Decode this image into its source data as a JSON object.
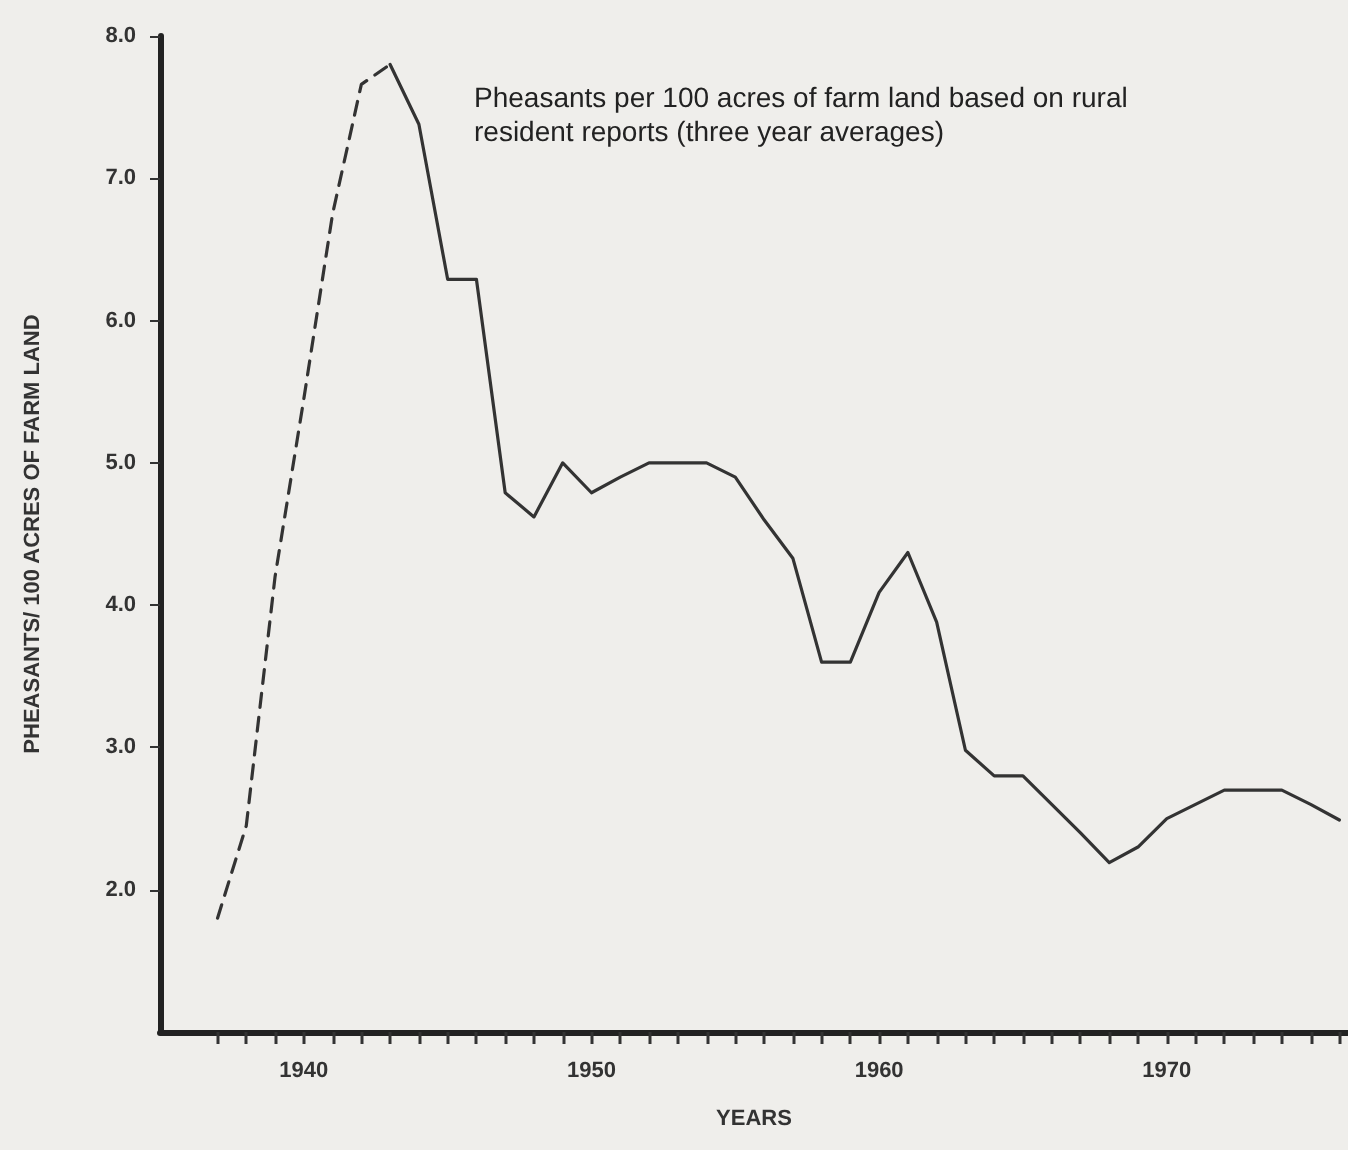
{
  "chart_data": {
    "type": "line",
    "xlabel": "YEARS",
    "ylabel": "PHEASANTS/ 100 ACRES OF FARM LAND",
    "annotations": [
      "Pheasants per 100 acres of farm land based on rural resident reports (three year averages)"
    ],
    "xlim": [
      1935,
      1976.3
    ],
    "xticks": [
      {
        "value": 1937,
        "label": null
      },
      {
        "value": 1938,
        "label": null
      },
      {
        "value": 1939,
        "label": null
      },
      1940,
      {
        "value": 1941,
        "label": null
      },
      {
        "value": 1942,
        "label": null
      },
      {
        "value": 1943,
        "label": null
      },
      {
        "value": 1944,
        "label": null
      },
      {
        "value": 1945,
        "label": null
      },
      {
        "value": 1946,
        "label": null
      },
      {
        "value": 1947,
        "label": null
      },
      {
        "value": 1948,
        "label": null
      },
      {
        "value": 1949,
        "label": null
      },
      1950,
      {
        "value": 1951,
        "label": null
      },
      {
        "value": 1952,
        "label": null
      },
      {
        "value": 1953,
        "label": null
      },
      {
        "value": 1954,
        "label": null
      },
      {
        "value": 1955,
        "label": null
      },
      {
        "value": 1956,
        "label": null
      },
      {
        "value": 1957,
        "label": null
      },
      {
        "value": 1958,
        "label": null
      },
      {
        "value": 1959,
        "label": null
      },
      1960,
      {
        "value": 1961,
        "label": null
      },
      {
        "value": 1962,
        "label": null
      },
      {
        "value": 1963,
        "label": null
      },
      {
        "value": 1964,
        "label": null
      },
      {
        "value": 1965,
        "label": null
      },
      {
        "value": 1966,
        "label": null
      },
      {
        "value": 1967,
        "label": null
      },
      {
        "value": 1968,
        "label": null
      },
      {
        "value": 1969,
        "label": null
      },
      1970,
      {
        "value": 1971,
        "label": null
      },
      {
        "value": 1972,
        "label": null
      },
      {
        "value": 1973,
        "label": null
      },
      {
        "value": 1974,
        "label": null
      },
      {
        "value": 1975,
        "label": null
      },
      {
        "value": 1976,
        "label": null
      }
    ],
    "ylim": [
      1,
      8
    ],
    "yticks": [
      {
        "value": 2,
        "label": "2.0"
      },
      {
        "value": 3,
        "label": "3.0"
      },
      {
        "value": 4,
        "label": "4.0"
      },
      {
        "value": 5,
        "label": "5.0"
      },
      {
        "value": 6,
        "label": "6.0"
      },
      {
        "value": 7,
        "label": "7.0"
      },
      {
        "value": 8,
        "label": "8.0"
      }
    ],
    "grid": false,
    "marker": "none",
    "series": [
      {
        "color": "#333333",
        "line_style": "dashed",
        "x": [
          1937,
          1938,
          1939,
          1940,
          1941,
          1942,
          1943
        ],
        "values": [
          1.8,
          2.45,
          4.2,
          5.45,
          6.75,
          7.66,
          7.8
        ]
      },
      {
        "color": "#333333",
        "line_style": "solid",
        "x": [
          1943,
          1944,
          1945,
          1946,
          1947,
          1948,
          1949,
          1950,
          1951,
          1952,
          1953,
          1954,
          1955,
          1956,
          1957,
          1958,
          1959,
          1960,
          1961,
          1962,
          1963,
          1964,
          1965,
          1966,
          1967,
          1968,
          1969,
          1970,
          1971,
          1972,
          1973,
          1974,
          1975,
          1976
        ],
        "values": [
          7.8,
          7.38,
          6.29,
          6.29,
          4.79,
          4.62,
          5.0,
          4.79,
          4.9,
          5.0,
          5.0,
          5.0,
          4.9,
          4.6,
          4.33,
          3.6,
          3.6,
          4.09,
          4.37,
          3.88,
          2.98,
          2.8,
          2.8,
          2.6,
          2.4,
          2.19,
          2.3,
          2.5,
          2.6,
          2.7,
          2.7,
          2.7,
          2.6,
          2.49
        ]
      }
    ]
  }
}
